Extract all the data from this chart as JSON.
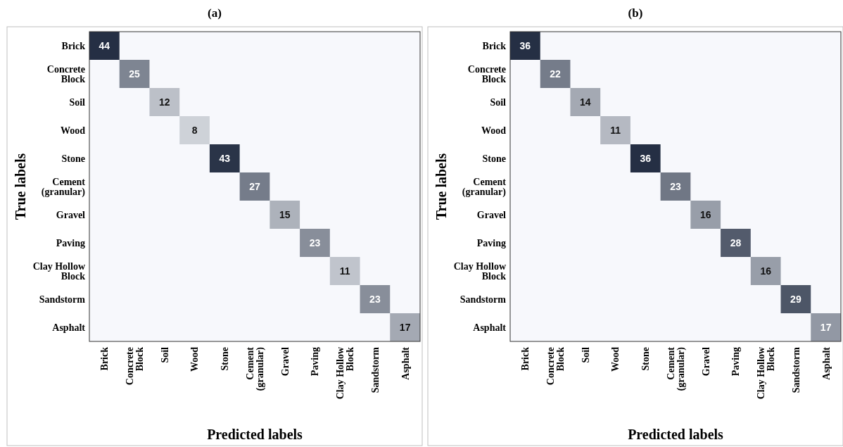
{
  "chart_data": [
    {
      "type": "heatmap",
      "title": "(a)",
      "xlabel": "Predicted labels",
      "ylabel": "True labels",
      "data_labels": true,
      "categories": [
        "Brick",
        "Concrete Block",
        "Soil",
        "Wood",
        "Stone",
        "Cement (granular)",
        "Gravel",
        "Paving",
        "Clay Hollow Block",
        "Sandstorm",
        "Asphalt"
      ],
      "y_categories": [
        "Brick",
        "Concrete Block",
        "Soil",
        "Wood",
        "Stone",
        "Cement (granular)",
        "Gravel",
        "Paving",
        "Clay Hollow Block",
        "Sandstorm",
        "Asphalt"
      ],
      "cells": [
        [
          44,
          null,
          null,
          null,
          null,
          null,
          null,
          null,
          null,
          null,
          null
        ],
        [
          null,
          25,
          null,
          null,
          null,
          null,
          null,
          null,
          null,
          null,
          null
        ],
        [
          null,
          null,
          12,
          null,
          null,
          null,
          null,
          null,
          null,
          null,
          null
        ],
        [
          null,
          null,
          null,
          8,
          null,
          null,
          null,
          null,
          null,
          null,
          null
        ],
        [
          null,
          null,
          null,
          null,
          43,
          null,
          null,
          null,
          null,
          null,
          null
        ],
        [
          null,
          null,
          null,
          null,
          null,
          27,
          null,
          null,
          null,
          null,
          null
        ],
        [
          null,
          null,
          null,
          null,
          null,
          null,
          15,
          null,
          null,
          null,
          null
        ],
        [
          null,
          null,
          null,
          null,
          null,
          null,
          null,
          23,
          null,
          null,
          null
        ],
        [
          null,
          null,
          null,
          null,
          null,
          null,
          null,
          null,
          11,
          null,
          null
        ],
        [
          null,
          null,
          null,
          null,
          null,
          null,
          null,
          null,
          null,
          23,
          null
        ],
        [
          null,
          null,
          null,
          null,
          null,
          null,
          null,
          null,
          null,
          null,
          17
        ]
      ]
    },
    {
      "type": "heatmap",
      "title": "(b)",
      "xlabel": "Predicted labels",
      "ylabel": "True labels",
      "data_labels": true,
      "categories": [
        "Brick",
        "Concrete Block",
        "Soil",
        "Wood",
        "Stone",
        "Cement (granular)",
        "Gravel",
        "Paving",
        "Clay Hollow Block",
        "Sandstorm",
        "Asphalt"
      ],
      "y_categories": [
        "Brick",
        "Concrete Block",
        "Soil",
        "Wood",
        "Stone",
        "Cement (granular)",
        "Gravel",
        "Paving",
        "Clay Hollow Block",
        "Sandstorm",
        "Asphalt"
      ],
      "cells": [
        [
          36,
          null,
          null,
          null,
          null,
          null,
          null,
          null,
          null,
          null,
          null
        ],
        [
          null,
          22,
          null,
          null,
          null,
          null,
          null,
          null,
          null,
          null,
          null
        ],
        [
          null,
          null,
          14,
          null,
          null,
          null,
          null,
          null,
          null,
          null,
          null
        ],
        [
          null,
          null,
          null,
          11,
          null,
          null,
          null,
          null,
          null,
          null,
          null
        ],
        [
          null,
          null,
          null,
          null,
          36,
          null,
          null,
          null,
          null,
          null,
          null
        ],
        [
          null,
          null,
          null,
          null,
          null,
          23,
          null,
          null,
          null,
          null,
          null
        ],
        [
          null,
          null,
          null,
          null,
          null,
          null,
          16,
          null,
          null,
          null,
          null
        ],
        [
          null,
          null,
          null,
          null,
          null,
          null,
          null,
          28,
          null,
          null,
          null
        ],
        [
          null,
          null,
          null,
          null,
          null,
          null,
          null,
          null,
          16,
          null,
          null
        ],
        [
          null,
          null,
          null,
          null,
          null,
          null,
          null,
          null,
          null,
          29,
          null
        ],
        [
          null,
          null,
          null,
          null,
          null,
          null,
          null,
          null,
          null,
          null,
          17
        ]
      ]
    }
  ]
}
